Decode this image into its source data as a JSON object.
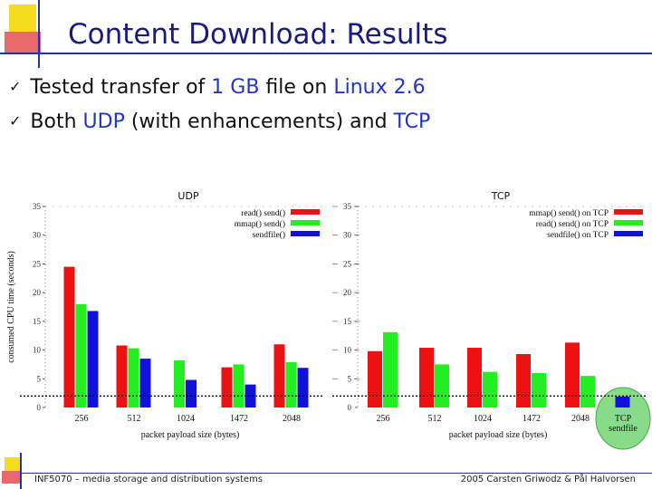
{
  "slide": {
    "title": "Content Download: Results",
    "bullets": [
      {
        "parts": [
          "Tested transfer of ",
          "1 GB",
          " file on ",
          "Linux 2.6",
          ""
        ]
      },
      {
        "parts": [
          "Both ",
          "UDP",
          " (with enhancements) and ",
          "TCP",
          ""
        ]
      }
    ],
    "footer_left": "INF5070 – media storage and distribution systems",
    "footer_right": "2005  Carsten Griwodz & Pål Halvorsen"
  },
  "chart_data": [
    {
      "type": "bar",
      "title": "UDP",
      "xlabel": "packet payload size (bytes)",
      "ylabel": "consumed CPU time (seconds)",
      "ylim": [
        0,
        35
      ],
      "yticks": [
        0,
        5,
        10,
        15,
        20,
        25,
        30,
        35
      ],
      "categories": [
        "256",
        "512",
        "1024",
        "1472",
        "2048"
      ],
      "legend_position": "top-right",
      "series": [
        {
          "name": "read() send()",
          "color": "#ee1111",
          "values": [
            24.5,
            10.8,
            null,
            7.0,
            11.0
          ]
        },
        {
          "name": "mmap() send()",
          "color": "#22ee22",
          "values": [
            18.0,
            10.3,
            8.2,
            7.5,
            7.9
          ]
        },
        {
          "name": "sendfile()",
          "color": "#1111dd",
          "values": [
            16.8,
            8.5,
            4.8,
            4.0,
            6.9
          ]
        }
      ],
      "reference_line": 2.0
    },
    {
      "type": "bar",
      "title": "TCP",
      "xlabel": "packet payload size (bytes)",
      "ylim": [
        0,
        35
      ],
      "yticks": [
        0,
        5,
        10,
        15,
        20,
        25,
        30,
        35
      ],
      "categories": [
        "256",
        "512",
        "1024",
        "1472",
        "2048",
        "TCP sendfile"
      ],
      "legend_position": "top-right",
      "series": [
        {
          "name": "mmap() send() on TCP",
          "color": "#ee1111",
          "values": [
            9.8,
            10.4,
            10.4,
            9.3,
            11.3,
            null
          ]
        },
        {
          "name": "read() send() on TCP",
          "color": "#22ee22",
          "values": [
            13.1,
            7.5,
            6.2,
            6.0,
            5.5,
            null
          ]
        },
        {
          "name": "sendfile() on TCP",
          "color": "#1111dd",
          "values": [
            null,
            null,
            null,
            null,
            null,
            1.9
          ]
        }
      ],
      "reference_line": 2.0
    }
  ]
}
